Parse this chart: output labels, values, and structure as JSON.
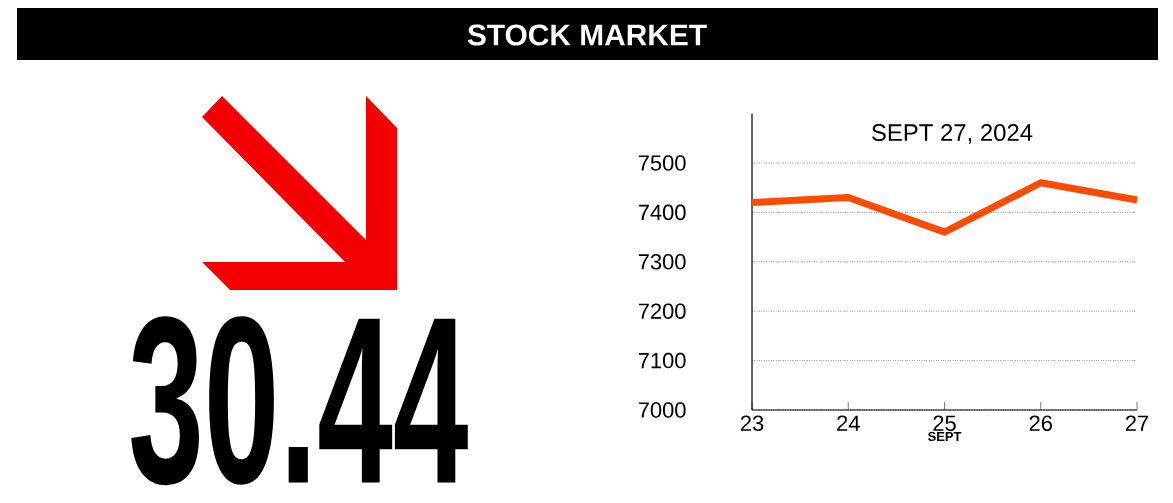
{
  "chart_data": {
    "type": "line",
    "title": "STOCK MARKET",
    "subtitle": "SEPT 27, 2024",
    "xlabel": "SEPT",
    "annotations": [
      "30.44"
    ],
    "x": [
      23,
      24,
      25,
      26,
      27
    ],
    "series": [
      {
        "color": "#ff4b00",
        "values": [
          7420,
          7430,
          7360,
          7460,
          7425
        ]
      }
    ],
    "xlim": [
      23,
      27
    ],
    "xticks": [
      23,
      24,
      25,
      26,
      27
    ],
    "ylim": [
      7000,
      7600
    ],
    "yticks": [
      7000,
      7100,
      7200,
      7300,
      7400,
      7500
    ],
    "grid": "y",
    "line_style": "solid",
    "marker": "none"
  }
}
